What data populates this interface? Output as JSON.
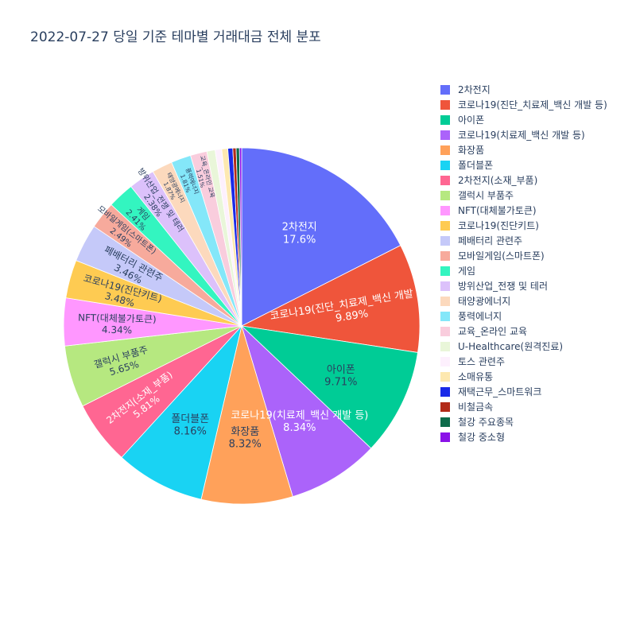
{
  "chart_data": {
    "type": "pie",
    "title": "2022-07-27 당일 기준 테마별 거래대금 전체 분포",
    "slices": [
      {
        "label": "2차전지",
        "percent": 17.6,
        "color": "#636efa"
      },
      {
        "label": "코로나19(진단_치료제_백신 개발 등)",
        "percent": 9.89,
        "color": "#EF553B"
      },
      {
        "label": "아이폰",
        "percent": 9.71,
        "color": "#00cc96"
      },
      {
        "label": "코로나19(치료제_백신 개발 등)",
        "percent": 8.34,
        "color": "#ab63fa"
      },
      {
        "label": "화장품",
        "percent": 8.32,
        "color": "#FFA15A"
      },
      {
        "label": "폴더블폰",
        "percent": 8.16,
        "color": "#19d3f3"
      },
      {
        "label": "2차전지(소재_부품)",
        "percent": 5.81,
        "color": "#FF6692"
      },
      {
        "label": "갤럭시 부품주",
        "percent": 5.65,
        "color": "#B6E880"
      },
      {
        "label": "NFT(대체불가토큰)",
        "percent": 4.34,
        "color": "#FF97FF"
      },
      {
        "label": "코로나19(진단키트)",
        "percent": 3.48,
        "color": "#FECB52"
      },
      {
        "label": "페배터리 관련주",
        "percent": 3.46,
        "color": "#c5c9f9"
      },
      {
        "label": "모바일게임(스마트폰)",
        "percent": 2.49,
        "color": "#f7aa9c"
      },
      {
        "label": "게임",
        "percent": 2.41,
        "color": "#33f5c0"
      },
      {
        "label": "방위산업_전쟁 및 테러",
        "percent": 2.38,
        "color": "#dcc1fb"
      },
      {
        "label": "태양광에너지",
        "percent": 1.87,
        "color": "#fcd9bd"
      },
      {
        "label": "풍력에너지",
        "percent": 1.81,
        "color": "#84e7f9"
      },
      {
        "label": "교육_온라인 교육",
        "percent": 1.51,
        "color": "#f9cddd"
      },
      {
        "label": "U-Healthcare(원격진료)",
        "percent": 0.75,
        "color": "#e9f6d9"
      },
      {
        "label": "토스 관련주",
        "percent": 0.6,
        "color": "#fdf0fd"
      },
      {
        "label": "소매유통",
        "percent": 0.55,
        "color": "#fde8b0"
      },
      {
        "label": "재택근무_스마트워크",
        "percent": 0.45,
        "color": "#1a2ae8"
      },
      {
        "label": "비철금속",
        "percent": 0.3,
        "color": "#b22a18"
      },
      {
        "label": "철강 주요종목",
        "percent": 0.3,
        "color": "#0d6b4a"
      },
      {
        "label": "철강 중소형",
        "percent": 0.2,
        "color": "#8a12e8"
      }
    ],
    "legend_position": "right"
  }
}
